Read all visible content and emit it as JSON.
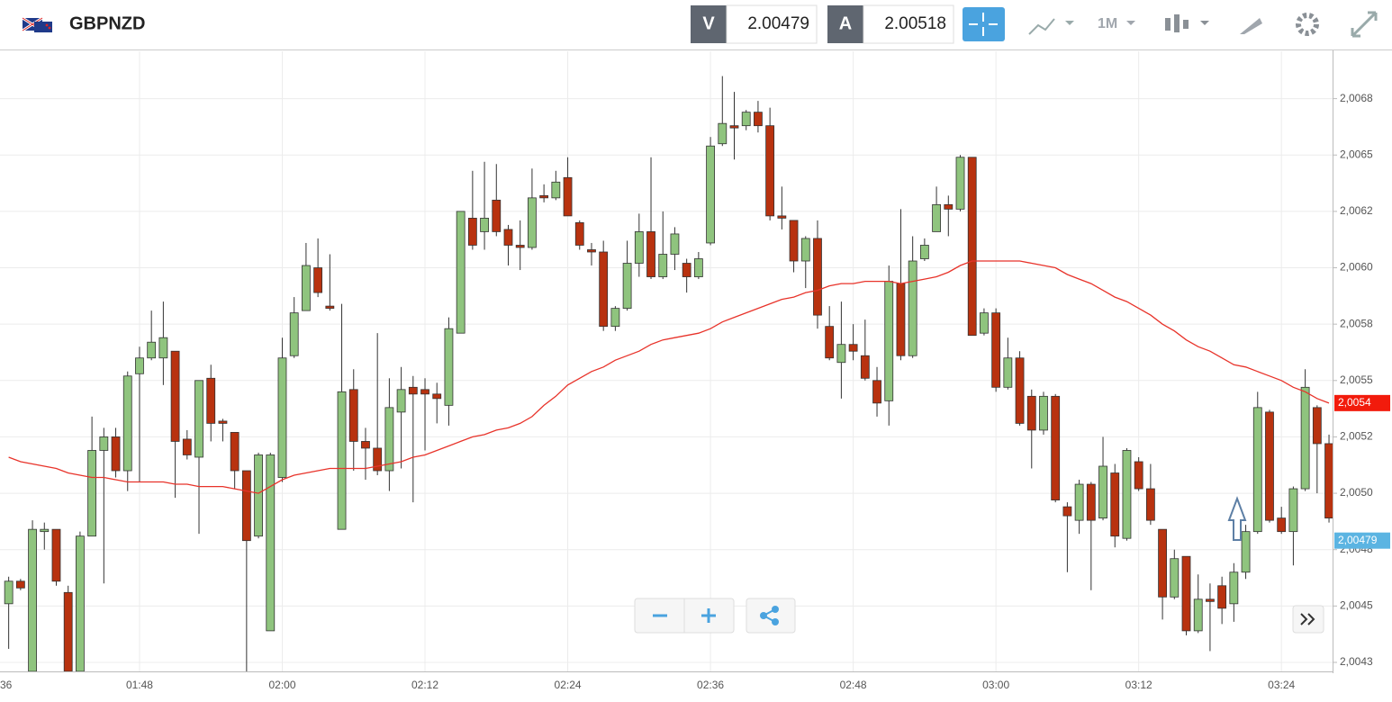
{
  "toolbar": {
    "symbol": "GBPNZD",
    "bid_label": "V",
    "bid": 2.00479,
    "ask_label": "A",
    "ask": 2.00518,
    "timeframe": "1M"
  },
  "chart_data": {
    "type": "candlestick",
    "x": [
      97,
      98,
      99,
      100,
      101,
      102,
      103,
      104,
      105,
      106,
      107,
      108,
      109,
      110,
      111,
      112,
      113,
      114,
      115,
      116,
      117,
      118,
      119,
      120,
      121,
      122,
      123,
      124,
      125,
      126,
      127,
      128,
      129,
      130,
      131,
      132,
      133,
      134,
      135,
      136,
      137,
      138,
      139,
      140,
      141,
      142,
      143,
      144,
      145,
      146,
      147,
      148,
      149,
      150,
      151,
      152,
      153,
      154,
      155,
      156,
      157,
      158,
      159,
      160,
      161,
      162,
      163,
      164,
      165,
      166,
      167,
      168,
      169,
      170,
      171,
      172,
      173,
      174,
      175,
      176,
      177,
      178,
      179,
      180,
      181,
      182,
      183,
      184,
      185,
      186,
      187,
      188,
      189,
      190,
      191,
      192,
      193,
      194,
      195,
      196,
      197,
      198,
      199,
      200,
      201,
      202,
      203,
      204,
      205,
      206,
      207,
      208
    ],
    "open": [
      2.00451,
      2.00461,
      2.00421,
      2.00483,
      2.00484,
      2.00456,
      2.00421,
      2.00481,
      2.00519,
      2.00525,
      2.0051,
      2.00553,
      2.0056,
      2.0056,
      2.00563,
      2.00524,
      2.00516,
      2.00551,
      2.00532,
      2.00527,
      2.0051,
      2.00481,
      2.00439,
      2.00507,
      2.00561,
      2.00581,
      2.006,
      2.00583,
      2.00484,
      2.00546,
      2.00523,
      2.0052,
      2.0051,
      2.00536,
      2.00547,
      2.00546,
      2.00544,
      2.00539,
      2.00571,
      2.00622,
      2.00616,
      2.0063,
      2.00617,
      2.0061,
      2.00609,
      2.00632,
      2.00631,
      2.0064,
      2.0062,
      2.00608,
      2.00607,
      2.00574,
      2.00582,
      2.00602,
      2.00616,
      2.00596,
      2.00606,
      2.00602,
      2.00596,
      2.00611,
      2.00655,
      2.00663,
      2.00663,
      2.00669,
      2.00663,
      2.00623,
      2.00621,
      2.00603,
      2.00613,
      2.00574,
      2.00558,
      2.00566,
      2.00561,
      2.0055,
      2.00541,
      2.00593,
      2.00561,
      2.00604,
      2.00616,
      2.00628,
      2.00626,
      2.00649,
      2.00571,
      2.0058,
      2.00547,
      2.0056,
      2.00543,
      2.00528,
      2.00543,
      2.00494,
      2.00488,
      2.00504,
      2.00489,
      2.00509,
      2.0048,
      2.00514,
      2.00502,
      2.00484,
      2.00454,
      2.00472,
      2.00439,
      2.00453,
      2.00459,
      2.00451,
      2.00465,
      2.00483,
      2.00536,
      2.00489,
      2.00483,
      2.00502,
      2.00538,
      2.00522
    ],
    "high": [
      2.00463,
      2.00462,
      2.00488,
      2.00487,
      2.00484,
      2.00459,
      2.00483,
      2.00534,
      2.00529,
      2.00529,
      2.00554,
      2.00565,
      2.00581,
      2.00585,
      2.00563,
      2.00528,
      2.0055,
      2.00557,
      2.00533,
      2.00527,
      2.0051,
      2.00518,
      2.00518,
      2.00569,
      2.00587,
      2.00611,
      2.00613,
      2.00606,
      2.00584,
      2.00555,
      2.00529,
      2.00571,
      2.00551,
      2.00556,
      2.00552,
      2.00551,
      2.00549,
      2.00578,
      2.00625,
      2.00643,
      2.00647,
      2.00646,
      2.00619,
      2.00621,
      2.00644,
      2.00637,
      2.00643,
      2.00649,
      2.00621,
      2.00611,
      2.00612,
      2.00583,
      2.00612,
      2.00624,
      2.00649,
      2.00625,
      2.00618,
      2.00604,
      2.00607,
      2.00658,
      2.00685,
      2.00678,
      2.0067,
      2.00674,
      2.00671,
      2.00636,
      2.00621,
      2.00614,
      2.00621,
      2.00583,
      2.00585,
      2.00575,
      2.00577,
      2.00556,
      2.00601,
      2.00626,
      2.00614,
      2.00613,
      2.00636,
      2.00632,
      2.0065,
      2.00649,
      2.00582,
      2.00582,
      2.00569,
      2.00563,
      2.00546,
      2.00545,
      2.00544,
      2.00496,
      2.00506,
      2.00505,
      2.00525,
      2.00513,
      2.0052,
      2.00516,
      2.00513,
      2.00484,
      2.00475,
      2.00472,
      2.00464,
      2.0046,
      2.00463,
      2.00469,
      2.00486,
      2.00545,
      2.00537,
      2.00494,
      2.00503,
      2.00555,
      2.00539,
      2.00526
    ],
    "low": [
      2.00431,
      2.00457,
      2.00421,
      2.00475,
      2.00459,
      2.00421,
      2.00421,
      2.00481,
      2.0046,
      2.00507,
      2.00501,
      2.00505,
      2.00559,
      2.00548,
      2.00498,
      2.00515,
      2.00482,
      2.00523,
      2.00523,
      2.00502,
      2.00421,
      2.0048,
      2.00439,
      2.00505,
      2.0056,
      2.00581,
      2.00587,
      2.00581,
      2.00484,
      2.0051,
      2.00506,
      2.00508,
      2.00501,
      2.00511,
      2.00496,
      2.00519,
      2.00531,
      2.0053,
      2.00571,
      2.00608,
      2.00608,
      2.00614,
      2.00601,
      2.00599,
      2.00608,
      2.00629,
      2.0063,
      2.00623,
      2.00608,
      2.00601,
      2.00572,
      2.00572,
      2.00581,
      2.00596,
      2.00595,
      2.00595,
      2.00599,
      2.00589,
      2.00595,
      2.0061,
      2.00654,
      2.00648,
      2.00661,
      2.0066,
      2.00621,
      2.00617,
      2.00598,
      2.00591,
      2.00573,
      2.00559,
      2.00542,
      2.00559,
      2.0055,
      2.00534,
      2.0053,
      2.00559,
      2.0056,
      2.00603,
      2.00616,
      2.00614,
      2.00625,
      2.0057,
      2.0057,
      2.00545,
      2.00546,
      2.0053,
      2.00511,
      2.00526,
      2.00496,
      2.00465,
      2.00482,
      2.00457,
      2.00488,
      2.00476,
      2.00479,
      2.00501,
      2.00486,
      2.00444,
      2.00453,
      2.00437,
      2.00438,
      2.0043,
      2.00442,
      2.00443,
      2.00462,
      2.00482,
      2.00487,
      2.00482,
      2.00468,
      2.00501,
      2.005,
      2.00487
    ],
    "close": [
      2.00461,
      2.00458,
      2.00484,
      2.00484,
      2.00461,
      2.00421,
      2.00481,
      2.00519,
      2.00525,
      2.0051,
      2.00552,
      2.0056,
      2.00567,
      2.00569,
      2.00523,
      2.00517,
      2.0055,
      2.00531,
      2.00531,
      2.0051,
      2.00479,
      2.00517,
      2.00517,
      2.0056,
      2.0058,
      2.00601,
      2.00589,
      2.00582,
      2.00545,
      2.00523,
      2.0052,
      2.0051,
      2.00538,
      2.00546,
      2.00544,
      2.00544,
      2.00542,
      2.00573,
      2.00625,
      2.0061,
      2.00622,
      2.00616,
      2.0061,
      2.00609,
      2.00631,
      2.00631,
      2.00638,
      2.00623,
      2.0061,
      2.00607,
      2.00574,
      2.00582,
      2.00602,
      2.00616,
      2.00596,
      2.00606,
      2.00615,
      2.00596,
      2.00604,
      2.00654,
      2.00664,
      2.00662,
      2.00669,
      2.00663,
      2.00623,
      2.00622,
      2.00603,
      2.00613,
      2.00579,
      2.0056,
      2.00566,
      2.00563,
      2.00551,
      2.0054,
      2.00594,
      2.00561,
      2.00603,
      2.0061,
      2.00628,
      2.00626,
      2.00649,
      2.0057,
      2.0058,
      2.00547,
      2.0056,
      2.00531,
      2.00528,
      2.00543,
      2.00497,
      2.0049,
      2.00504,
      2.00488,
      2.00512,
      2.00481,
      2.00519,
      2.00502,
      2.00488,
      2.00454,
      2.00471,
      2.00439,
      2.00453,
      2.00452,
      2.00449,
      2.00465,
      2.00483,
      2.00538,
      2.00488,
      2.00483,
      2.00502,
      2.00547,
      2.00522,
      2.00489
    ],
    "ma": {
      "color": "#e8332a",
      "values": [
        2.00516,
        2.00514,
        2.00513,
        2.00512,
        2.00511,
        2.00509,
        2.00508,
        2.00507,
        2.00507,
        2.00506,
        2.00505,
        2.00505,
        2.00505,
        2.00505,
        2.00504,
        2.00504,
        2.00503,
        2.00503,
        2.00503,
        2.00502,
        2.00501,
        2.005,
        2.00503,
        2.00506,
        2.00508,
        2.00509,
        2.0051,
        2.00511,
        2.00511,
        2.00511,
        2.00511,
        2.00512,
        2.00513,
        2.00514,
        2.00516,
        2.00517,
        2.00519,
        2.00521,
        2.00523,
        2.00525,
        2.00526,
        2.00528,
        2.00529,
        2.00531,
        2.00534,
        2.00539,
        2.00543,
        2.00548,
        2.00551,
        2.00554,
        2.00556,
        2.00559,
        2.00561,
        2.00563,
        2.00566,
        2.00568,
        2.00569,
        2.0057,
        2.00571,
        2.00573,
        2.00576,
        2.00578,
        2.0058,
        2.00582,
        2.00584,
        2.00586,
        2.00587,
        2.00589,
        2.0059,
        2.00592,
        2.00593,
        2.00593,
        2.00594,
        2.00594,
        2.00594,
        2.00593,
        2.00594,
        2.00595,
        2.00596,
        2.00598,
        2.00601,
        2.00603,
        2.00603,
        2.00603,
        2.00603,
        2.00603,
        2.00602,
        2.00601,
        2.006,
        2.00597,
        2.00595,
        2.00593,
        2.0059,
        2.00587,
        2.00585,
        2.00582,
        2.00579,
        2.00575,
        2.00572,
        2.00568,
        2.00565,
        2.00563,
        2.0056,
        2.00557,
        2.00556,
        2.00554,
        2.00552,
        2.0055,
        2.00547,
        2.00545,
        2.00542,
        2.0054
      ]
    },
    "up_color": "#8fc47e",
    "down_color": "#b8320f",
    "xlim": [
      96.27,
      208.3
    ],
    "xticks": [
      {
        "value": 96,
        "label": "36"
      },
      {
        "value": 108,
        "label": "01:48"
      },
      {
        "value": 120,
        "label": "02:00"
      },
      {
        "value": 132,
        "label": "02:12"
      },
      {
        "value": 144,
        "label": "02:24"
      },
      {
        "value": 156,
        "label": "02:36"
      },
      {
        "value": 168,
        "label": "02:48"
      },
      {
        "value": 180,
        "label": "03:00"
      },
      {
        "value": 192,
        "label": "03:12"
      },
      {
        "value": 204,
        "label": "03:24"
      }
    ],
    "ylim": [
      2.00421,
      2.00696
    ],
    "yticks": [
      {
        "value": 2.00425,
        "label": "2,0043"
      },
      {
        "value": 2.0045,
        "label": "2,0045"
      },
      {
        "value": 2.00475,
        "label": "2,0048"
      },
      {
        "value": 2.005,
        "label": "2,0050"
      },
      {
        "value": 2.00525,
        "label": "2,0052"
      },
      {
        "value": 2.0055,
        "label": "2,0055"
      },
      {
        "value": 2.00575,
        "label": "2,0058"
      },
      {
        "value": 2.006,
        "label": "2,0060"
      },
      {
        "value": 2.00625,
        "label": "2,0062"
      },
      {
        "value": 2.0065,
        "label": "2,0065"
      },
      {
        "value": 2.00675,
        "label": "2,0068"
      }
    ],
    "grid": true,
    "markers": [
      {
        "value": 2.0054,
        "label": "2,0054",
        "color": "#f21b0c"
      },
      {
        "value": 2.00479,
        "label": "2,00479",
        "color": "#5bb4e2"
      }
    ]
  }
}
